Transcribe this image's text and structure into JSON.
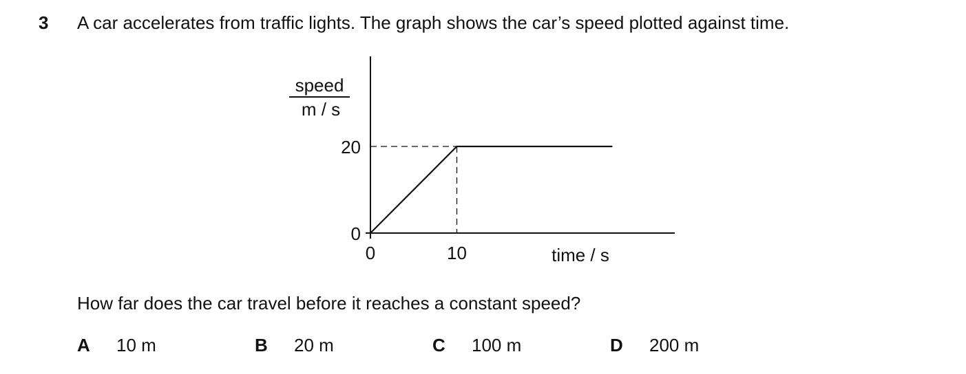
{
  "question": {
    "number": "3",
    "stem": "A car accelerates from traffic lights. The graph shows the car’s speed plotted against time.",
    "prompt": "How far does the car travel before it reaches a constant speed?"
  },
  "chart_data": {
    "type": "line",
    "ylabel_top": "speed",
    "ylabel_bottom": "m / s",
    "xlabel": "time / s",
    "x_ticks": [
      "0",
      "10"
    ],
    "y_ticks": [
      "0",
      "20"
    ],
    "x_tick_values": [
      0,
      10
    ],
    "y_tick_values": [
      0,
      20
    ],
    "xlim": [
      0,
      35
    ],
    "ylim": [
      0,
      20
    ],
    "series": [
      {
        "x": [
          0,
          10,
          28
        ],
        "y": [
          0,
          20,
          20
        ]
      }
    ],
    "guides": [
      {
        "from": [
          0,
          20
        ],
        "to": [
          10,
          20
        ],
        "style": "dashed"
      },
      {
        "from": [
          10,
          20
        ],
        "to": [
          10,
          0
        ],
        "style": "dashed"
      }
    ],
    "grid": false
  },
  "options": [
    {
      "letter": "A",
      "value": "10 m"
    },
    {
      "letter": "B",
      "value": "20 m"
    },
    {
      "letter": "C",
      "value": "100 m"
    },
    {
      "letter": "D",
      "value": "200 m"
    }
  ]
}
